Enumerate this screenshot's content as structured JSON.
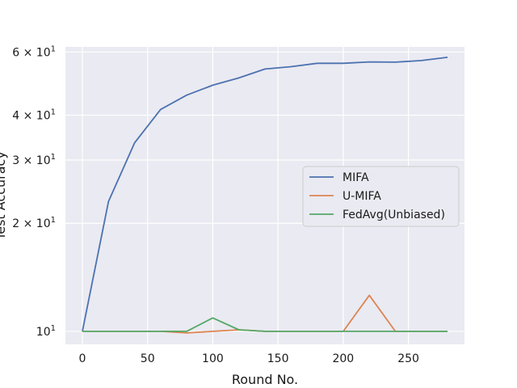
{
  "chart_data": {
    "type": "line",
    "xlabel": "Round No.",
    "ylabel": "Test Accuracy",
    "yscale": "log",
    "xlim": [
      -13,
      293
    ],
    "ylim": [
      9.2,
      62
    ],
    "x_ticks": [
      0,
      50,
      100,
      150,
      200,
      250
    ],
    "y_ticks": [
      {
        "value": 10,
        "label": "10",
        "exp": "1"
      },
      {
        "value": 20,
        "label": "2 × 10",
        "exp": "1"
      },
      {
        "value": 30,
        "label": "3 × 10",
        "exp": "1"
      },
      {
        "value": 40,
        "label": "4 × 10",
        "exp": "1"
      },
      {
        "value": 60,
        "label": "6 × 10",
        "exp": "1"
      }
    ],
    "grid": true,
    "legend_position": "center-right",
    "background": "#eaeaf2",
    "grid_color": "#ffffff",
    "x": [
      0,
      20,
      40,
      60,
      80,
      100,
      120,
      140,
      160,
      180,
      200,
      220,
      240,
      260,
      280
    ],
    "series": [
      {
        "name": "MIFA",
        "color": "#4c72b0",
        "values": [
          10.0,
          23.0,
          33.5,
          41.5,
          45.5,
          48.5,
          50.8,
          53.8,
          54.6,
          55.8,
          55.8,
          56.3,
          56.2,
          56.8,
          58.0
        ]
      },
      {
        "name": "U-MIFA",
        "color": "#dd8452",
        "values": [
          10.0,
          10.0,
          10.0,
          10.0,
          9.9,
          10.0,
          10.1,
          10.0,
          10.0,
          10.0,
          10.0,
          12.6,
          10.0,
          10.0,
          10.0
        ]
      },
      {
        "name": "FedAvg(Unbiased)",
        "color": "#55a868",
        "values": [
          10.0,
          10.0,
          10.0,
          10.0,
          10.0,
          10.9,
          10.1,
          10.0,
          10.0,
          10.0,
          10.0,
          10.0,
          10.0,
          10.0,
          10.0
        ]
      }
    ]
  }
}
